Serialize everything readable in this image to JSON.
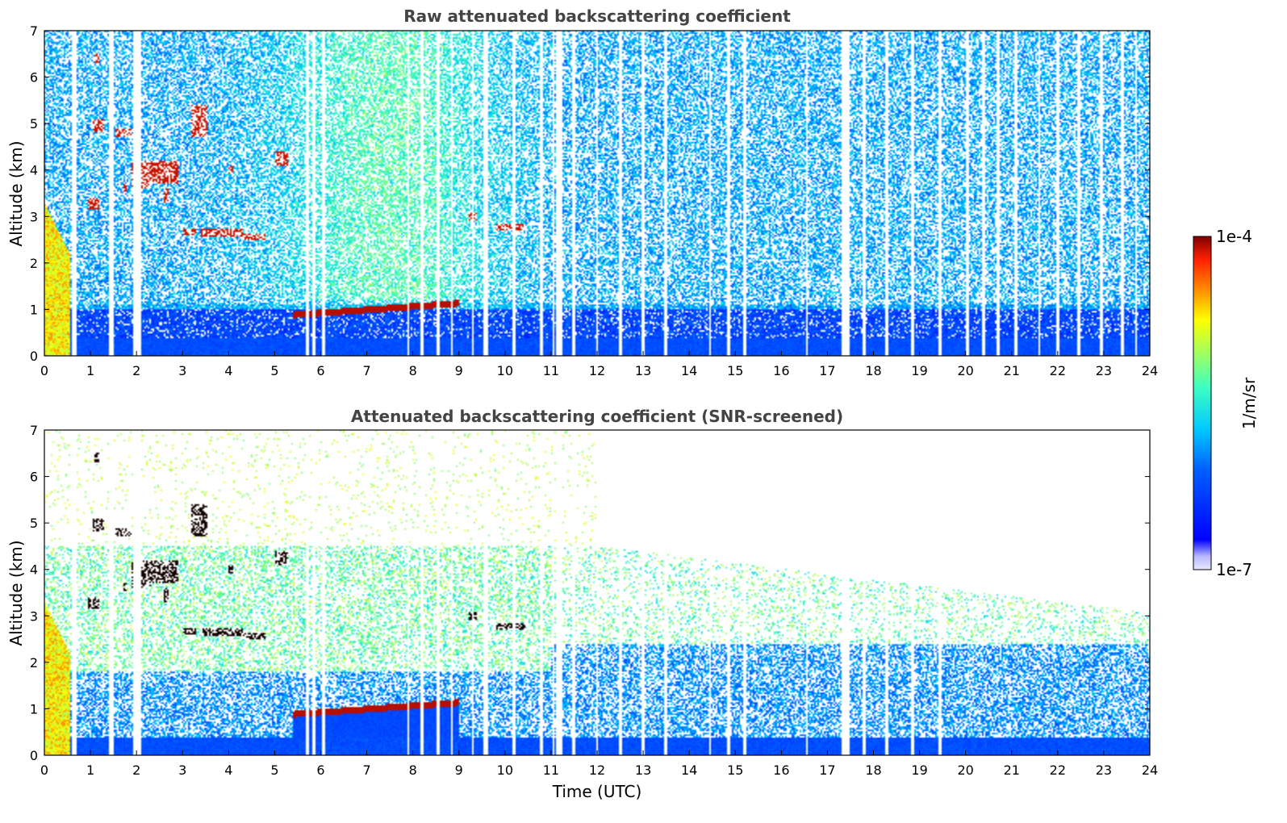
{
  "chart_data": [
    {
      "type": "heatmap",
      "title": "Raw attenuated backscattering coefficient",
      "xlabel": "",
      "ylabel": "Altitude (km)",
      "xlim": [
        0,
        24
      ],
      "ylim": [
        0,
        7
      ],
      "x_ticks": [
        "0",
        "1",
        "2",
        "3",
        "4",
        "5",
        "6",
        "7",
        "8",
        "9",
        "10",
        "11",
        "12",
        "13",
        "14",
        "15",
        "16",
        "17",
        "18",
        "19",
        "20",
        "21",
        "22",
        "23",
        "24"
      ],
      "y_ticks": [
        "0",
        "1",
        "2",
        "3",
        "4",
        "5",
        "6",
        "7"
      ],
      "features": [
        {
          "name": "boundary-layer",
          "x": [
            0,
            24
          ],
          "y": [
            0,
            0.4
          ]
        },
        {
          "name": "residual-layer",
          "x": [
            5.4,
            9.0
          ],
          "y": [
            0.85,
            1.15
          ]
        },
        {
          "name": "mid-level-cloud",
          "x": [
            0.7,
            5.2
          ],
          "y": [
            2.5,
            5.4
          ]
        },
        {
          "name": "cloud-at-10h",
          "x": [
            9.8,
            10.5
          ],
          "y": [
            2.7,
            2.9
          ]
        },
        {
          "name": "missing-data-gaps",
          "x": [
            0.7,
            1.45,
            2.05,
            9.55,
            11.15,
            17.35,
            17.45
          ]
        }
      ]
    },
    {
      "type": "heatmap",
      "title": "Attenuated backscattering coefficient (SNR-screened)",
      "xlabel": "Time (UTC)",
      "ylabel": "Altitude (km)",
      "xlim": [
        0,
        24
      ],
      "ylim": [
        0,
        7
      ],
      "x_ticks": [
        "0",
        "1",
        "2",
        "3",
        "4",
        "5",
        "6",
        "7",
        "8",
        "9",
        "10",
        "11",
        "12",
        "13",
        "14",
        "15",
        "16",
        "17",
        "18",
        "19",
        "20",
        "21",
        "22",
        "23",
        "24"
      ],
      "y_ticks": [
        "0",
        "1",
        "2",
        "3",
        "4",
        "5",
        "6",
        "7"
      ],
      "features": [
        {
          "name": "boundary-layer",
          "x": [
            0,
            24
          ],
          "y": [
            0,
            0.35
          ]
        },
        {
          "name": "residual-layer",
          "x": [
            5.4,
            9.0
          ],
          "y": [
            0.85,
            1.15
          ]
        },
        {
          "name": "mid-level-cloud",
          "x": [
            0.7,
            5.2
          ],
          "y": [
            2.5,
            5.4
          ]
        },
        {
          "name": "cloud-at-10h",
          "x": [
            9.8,
            10.5
          ],
          "y": [
            2.7,
            2.9
          ]
        }
      ]
    }
  ],
  "colorbar": {
    "label": "1/m/sr",
    "max_label": "1e-4",
    "min_label": "1e-7",
    "scale": "log",
    "range": [
      1e-07,
      0.0001
    ]
  }
}
